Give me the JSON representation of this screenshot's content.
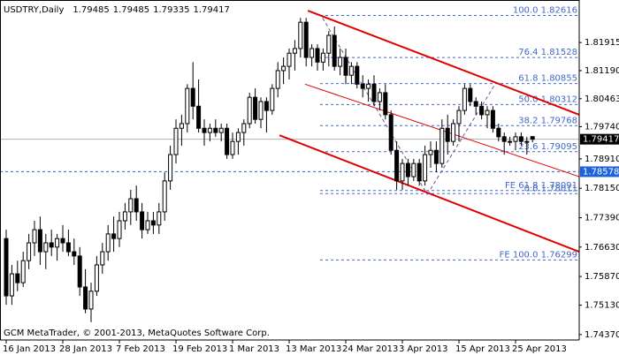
{
  "chart_data": {
    "type": "candlestick",
    "symbol": "USDTRY,Daily",
    "footer": "GCM MetaTrader, © 2001-2013, MetaQuotes Software Corp.",
    "categories": [
      "16 Jan 2013",
      null,
      null,
      null,
      null,
      null,
      null,
      null,
      null,
      null,
      "28 Jan 2013",
      null,
      null,
      null,
      null,
      null,
      null,
      null,
      null,
      null,
      "7 Feb 2013",
      null,
      null,
      null,
      null,
      null,
      null,
      null,
      null,
      null,
      "19 Feb 2013",
      null,
      null,
      null,
      null,
      null,
      null,
      null,
      null,
      null,
      "1 Mar 2013",
      null,
      null,
      null,
      null,
      null,
      null,
      null,
      null,
      null,
      "13 Mar 2013",
      null,
      null,
      null,
      null,
      null,
      null,
      null,
      null,
      null,
      "24 Mar 2013",
      null,
      null,
      null,
      null,
      null,
      null,
      null,
      null,
      null,
      "3 Apr 2013",
      null,
      null,
      null,
      null,
      null,
      null,
      null,
      null,
      null,
      "15 Apr 2013",
      null,
      null,
      null,
      null,
      null,
      null,
      null,
      null,
      null,
      "25 Apr 2013",
      null,
      null,
      null
    ],
    "open": [
      1.7685,
      1.7537,
      1.7594,
      1.7571,
      1.7628,
      1.7674,
      1.7708,
      1.7651,
      1.7674,
      1.7663,
      1.7685,
      1.7674,
      1.7651,
      1.764,
      1.756,
      1.7503,
      1.7549,
      1.7617,
      1.7651,
      1.7697,
      1.7685,
      1.7731,
      1.7754,
      1.7788,
      1.7754,
      1.7708,
      1.7731,
      1.772,
      1.7754,
      1.7834,
      1.7902,
      1.797,
      1.7982,
      1.8073,
      1.8027,
      1.797,
      1.7959,
      1.797,
      1.7959,
      1.797,
      1.7902,
      1.7936,
      1.7959,
      1.7982,
      1.805,
      1.7993,
      1.8039,
      1.8016,
      1.8073,
      1.8119,
      1.813,
      1.8164,
      1.8176,
      1.8244,
      1.8153,
      1.8176,
      1.8141,
      1.8164,
      1.821,
      1.813,
      1.8153,
      1.8107,
      1.813,
      1.8084,
      1.8073,
      1.8084,
      1.8039,
      1.8062,
      1.8005,
      1.7913,
      1.7834,
      1.7879,
      1.7845,
      1.7879,
      1.7834,
      1.7902,
      1.7913,
      1.7879,
      1.797,
      1.7936,
      1.7982,
      1.8016,
      1.8073,
      1.8039,
      1.8027,
      1.8005,
      1.8016,
      1.797,
      1.7948,
      1.7936,
      1.7936,
      1.7948,
      1.7936,
      1.79485
    ],
    "high": [
      1.7708,
      1.7617,
      1.7628,
      1.7651,
      1.7697,
      1.7731,
      1.7742,
      1.7697,
      1.7708,
      1.7697,
      1.772,
      1.7708,
      1.7685,
      1.7663,
      1.7606,
      1.7571,
      1.764,
      1.7674,
      1.772,
      1.7742,
      1.7754,
      1.7777,
      1.7811,
      1.7822,
      1.7777,
      1.7754,
      1.7754,
      1.7777,
      1.7856,
      1.7925,
      1.7993,
      1.8005,
      1.8084,
      1.8141,
      1.8096,
      1.7993,
      1.7982,
      1.7993,
      1.7982,
      1.7982,
      1.7959,
      1.797,
      1.7993,
      1.8062,
      1.8073,
      1.805,
      1.805,
      1.8084,
      1.8141,
      1.8153,
      1.8176,
      1.8198,
      1.8255,
      1.8255,
      1.8187,
      1.8187,
      1.8176,
      1.8221,
      1.8233,
      1.8176,
      1.8176,
      1.8141,
      1.8141,
      1.8107,
      1.8096,
      1.8107,
      1.8073,
      1.8084,
      1.8016,
      1.7936,
      1.7891,
      1.7891,
      1.7891,
      1.7891,
      1.7925,
      1.7936,
      1.7936,
      1.7993,
      1.8005,
      1.7993,
      1.8027,
      1.8084,
      1.8084,
      1.805,
      1.8039,
      1.8027,
      1.8027,
      1.7982,
      1.7959,
      1.7948,
      1.7959,
      1.7959,
      1.7948,
      1.79485
    ],
    "low": [
      1.7514,
      1.7514,
      1.7549,
      1.756,
      1.7606,
      1.764,
      1.7617,
      1.7606,
      1.764,
      1.7628,
      1.7651,
      1.764,
      1.7617,
      1.7537,
      1.7492,
      1.7469,
      1.7537,
      1.7594,
      1.7628,
      1.7651,
      1.7663,
      1.7708,
      1.772,
      1.7731,
      1.7685,
      1.7697,
      1.7697,
      1.7697,
      1.7731,
      1.7811,
      1.7879,
      1.7925,
      1.7959,
      1.7993,
      1.7959,
      1.7925,
      1.7936,
      1.7948,
      1.7936,
      1.7891,
      1.7891,
      1.7902,
      1.7925,
      1.797,
      1.7982,
      1.797,
      1.7959,
      1.8005,
      1.805,
      1.8084,
      1.8096,
      1.8119,
      1.8153,
      1.813,
      1.813,
      1.8119,
      1.8119,
      1.813,
      1.8119,
      1.8107,
      1.8084,
      1.8084,
      1.8073,
      1.805,
      1.8039,
      1.8027,
      1.8016,
      1.7993,
      1.7902,
      1.7811,
      1.7811,
      1.7822,
      1.7834,
      1.7822,
      1.7822,
      1.7868,
      1.7856,
      1.7868,
      1.7902,
      1.7925,
      1.7936,
      1.8005,
      1.8027,
      1.8005,
      1.7993,
      1.797,
      1.7959,
      1.7936,
      1.7902,
      1.7925,
      1.7913,
      1.7925,
      1.7902,
      1.79335
    ],
    "close": [
      1.7537,
      1.7594,
      1.7571,
      1.7628,
      1.7674,
      1.7708,
      1.7651,
      1.7674,
      1.7663,
      1.7685,
      1.7674,
      1.7651,
      1.764,
      1.756,
      1.7503,
      1.7549,
      1.7617,
      1.7651,
      1.7697,
      1.7685,
      1.7731,
      1.7754,
      1.7788,
      1.7754,
      1.7708,
      1.7731,
      1.772,
      1.7754,
      1.7834,
      1.7902,
      1.797,
      1.7982,
      1.8073,
      1.8027,
      1.797,
      1.7959,
      1.797,
      1.7959,
      1.797,
      1.7902,
      1.7936,
      1.7959,
      1.7982,
      1.805,
      1.7993,
      1.8039,
      1.8016,
      1.8073,
      1.8119,
      1.813,
      1.8164,
      1.8176,
      1.8244,
      1.8153,
      1.8176,
      1.8141,
      1.8164,
      1.821,
      1.813,
      1.8153,
      1.8107,
      1.813,
      1.8084,
      1.8073,
      1.8084,
      1.8039,
      1.8062,
      1.8005,
      1.7913,
      1.7834,
      1.7879,
      1.7845,
      1.7879,
      1.7834,
      1.7902,
      1.7913,
      1.7879,
      1.797,
      1.7936,
      1.7982,
      1.8016,
      1.8073,
      1.8039,
      1.8027,
      1.8005,
      1.8016,
      1.797,
      1.7948,
      1.7936,
      1.7936,
      1.7948,
      1.7936,
      1.7936,
      1.79417
    ],
    "ylim": [
      1.7423,
      1.829
    ],
    "yticks": [
      1.81915,
      {
        "value": 1.8119,
        "label": "1.81190"
      },
      1.80463,
      {
        "value": 1.7974,
        "label": "1.79740"
      },
      {
        "value": 1.7891,
        "label": "1.78910"
      },
      {
        "value": 1.7815,
        "label": "1.78150"
      },
      {
        "value": 1.7739,
        "label": "1.77390"
      },
      {
        "value": 1.7663,
        "label": "1.76630"
      },
      {
        "value": 1.7587,
        "label": "1.75870"
      },
      {
        "value": 1.7513,
        "label": "1.75130"
      },
      {
        "value": 1.7437,
        "label": "1.74370"
      }
    ],
    "up_color": "#ffffff",
    "down_color": "#000000",
    "fib_color": "#4169c8",
    "fib_levels": [
      {
        "label": "100.0 1.82616",
        "value": 1.82616
      },
      {
        "label": "76.4 1.81528",
        "value": 1.81528
      },
      {
        "label": "61.8 1.80855",
        "value": 1.80855
      },
      {
        "label": "50.0 1.80312",
        "value": 1.80312
      },
      {
        "label": "38.2 1.79768",
        "value": 1.79768
      },
      {
        "label": "23.6 1.79095",
        "value": 1.79095
      },
      {
        "label": "0.0 1.78011",
        "value": 1.78011
      },
      {
        "label": "FE 61.8 1.78091",
        "value": 1.78091
      },
      {
        "label": "FE 100.0 1.76299",
        "value": 1.76299
      }
    ],
    "hline": {
      "value": 1.78578,
      "color": "#1e64d8"
    },
    "trendlines": [
      {
        "x": [
          53.3,
          101.25
        ],
        "y": [
          1.8274,
          1.8005
        ],
        "color": "#e00000",
        "width": 2
      },
      {
        "x": [
          52.8,
          101.25
        ],
        "y": [
          1.8084,
          1.7845
        ],
        "color": "#e00000",
        "width": 1
      },
      {
        "x": [
          48.3,
          101.25
        ],
        "y": [
          1.7952,
          1.7651
        ],
        "color": "#e00000",
        "width": 2
      },
      {
        "x": [
          55.9,
          74.4
        ],
        "y": [
          1.8255,
          1.7799
        ],
        "color": "#7a4a9a",
        "width": 1,
        "dash": true
      },
      {
        "x": [
          74.4,
          86.4
        ],
        "y": [
          1.7799,
          1.8084
        ],
        "color": "#7a4a9a",
        "width": 1,
        "dash": true
      }
    ]
  }
}
